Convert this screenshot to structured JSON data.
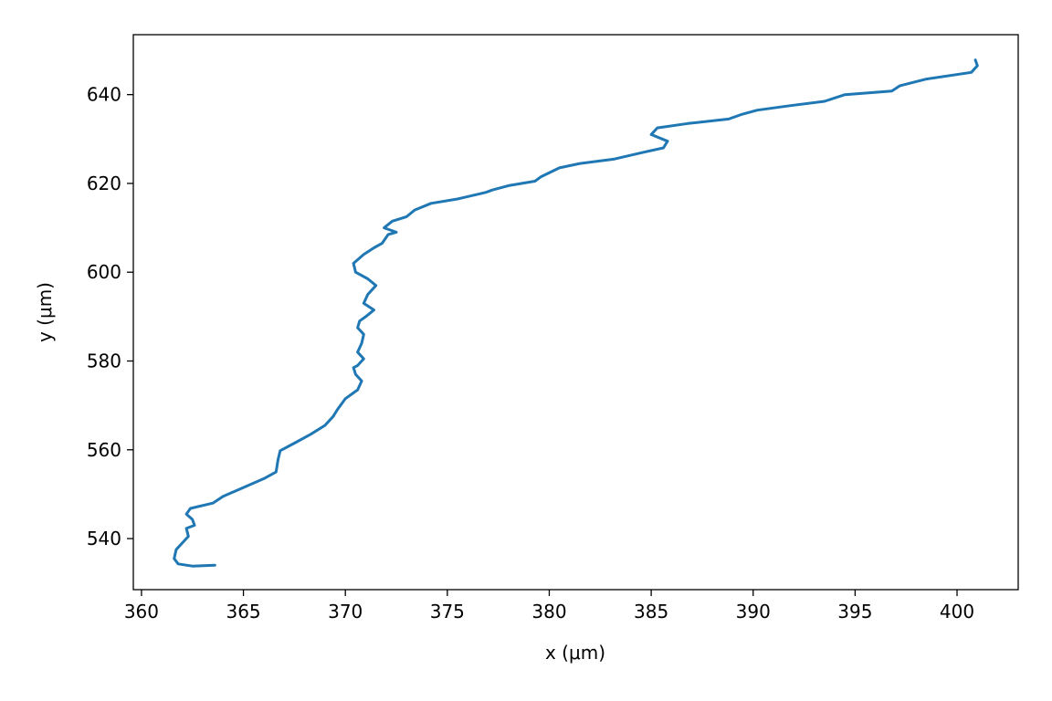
{
  "chart_data": {
    "type": "line",
    "title": "",
    "xlabel": "x (μm)",
    "ylabel": "y (μm)",
    "xlim": [
      359.6,
      403.0
    ],
    "ylim": [
      528.5,
      653.5
    ],
    "xticks": [
      360,
      365,
      370,
      375,
      380,
      385,
      390,
      395,
      400
    ],
    "yticks": [
      540,
      560,
      580,
      600,
      620,
      640
    ],
    "xtick_labels": [
      "360",
      "365",
      "370",
      "375",
      "380",
      "385",
      "390",
      "395",
      "400"
    ],
    "ytick_labels": [
      "540",
      "560",
      "580",
      "600",
      "620",
      "640"
    ],
    "grid": false,
    "series": [
      {
        "color": "#1f77b4",
        "x": [
          363.6,
          362.5,
          361.8,
          361.6,
          361.7,
          362.0,
          362.3,
          362.2,
          362.6,
          362.5,
          362.2,
          362.4,
          363.5,
          364.0,
          365.0,
          366.0,
          366.6,
          366.7,
          366.8,
          367.5,
          368.3,
          369.0,
          369.4,
          369.6,
          370.0,
          370.6,
          370.8,
          370.5,
          370.4,
          370.6,
          370.9,
          370.6,
          370.8,
          370.9,
          370.6,
          370.7,
          371.0,
          371.4,
          370.9,
          371.1,
          371.5,
          371.1,
          370.5,
          370.4,
          370.9,
          371.4,
          371.8,
          372.1,
          372.5,
          371.9,
          372.3,
          373.0,
          373.4,
          374.2,
          375.5,
          376.9,
          377.2,
          378.0,
          379.3,
          379.6,
          380.5,
          381.5,
          383.2,
          384.6,
          385.6,
          385.8,
          385.0,
          385.3,
          386.8,
          388.8,
          389.4,
          390.2,
          391.8,
          393.5,
          394.5,
          396.8,
          397.2,
          398.5,
          400.7,
          401.0,
          400.9
        ],
        "y": [
          534.0,
          533.8,
          534.3,
          535.5,
          537.5,
          539.0,
          540.5,
          542.3,
          543.0,
          544.3,
          545.5,
          546.8,
          548.0,
          549.5,
          551.5,
          553.5,
          555.0,
          557.8,
          559.8,
          561.5,
          563.5,
          565.5,
          567.5,
          569.0,
          571.5,
          573.5,
          575.5,
          577.0,
          578.5,
          579.0,
          580.5,
          582.0,
          584.0,
          586.0,
          587.5,
          589.0,
          590.0,
          591.5,
          593.0,
          595.0,
          597.0,
          598.5,
          600.0,
          602.0,
          604.0,
          605.5,
          606.5,
          608.5,
          609.0,
          610.0,
          611.5,
          612.5,
          614.0,
          615.5,
          616.5,
          618.0,
          618.5,
          619.5,
          620.5,
          621.5,
          623.5,
          624.5,
          625.5,
          627.0,
          628.0,
          629.5,
          631.0,
          632.5,
          633.5,
          634.5,
          635.5,
          636.5,
          637.5,
          638.5,
          640.0,
          640.8,
          642.0,
          643.5,
          645.0,
          646.5,
          647.8
        ]
      }
    ]
  }
}
